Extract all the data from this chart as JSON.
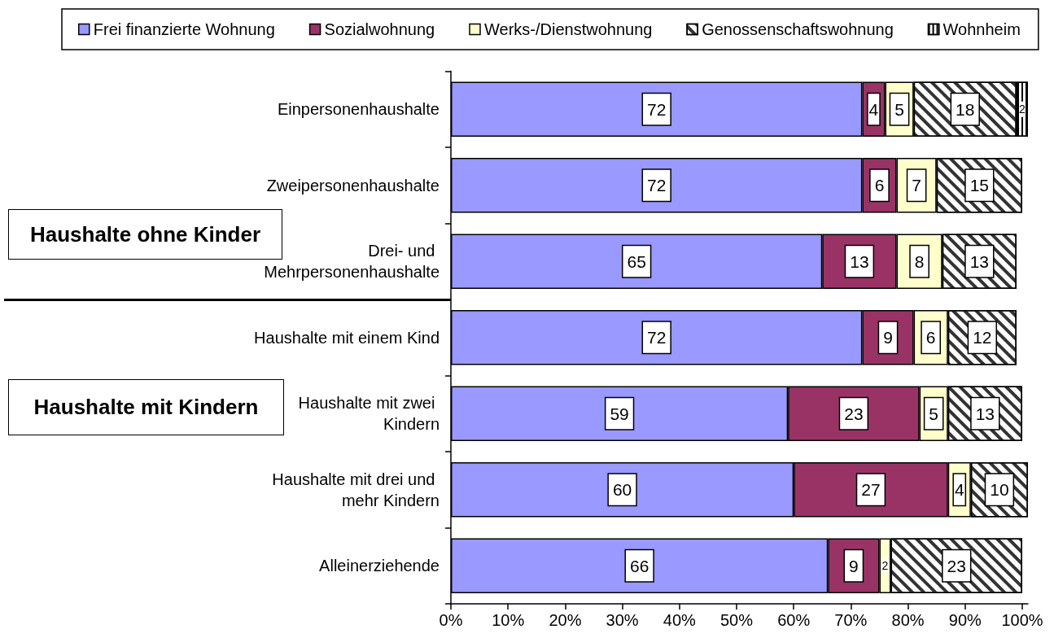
{
  "chart_data": {
    "type": "bar",
    "orientation": "horizontal",
    "stacked": true,
    "categories": [
      "Einpersonenhaushalte",
      "Zweipersonenhaushalte",
      "Drei- und Mehrpersonenhaushalte",
      "Haushalte mit einem Kind",
      "Haushalte mit zwei Kindern",
      "Haushalte mit drei und mehr Kindern",
      "Alleinerziehende"
    ],
    "series": [
      {
        "name": "Frei finanzierte Wohnung",
        "color": "#9999ff",
        "values": [
          72,
          72,
          65,
          72,
          59,
          60,
          66
        ]
      },
      {
        "name": "Sozialwohnung",
        "color": "#993366",
        "values": [
          4,
          6,
          13,
          9,
          23,
          27,
          9
        ]
      },
      {
        "name": "Werks-/Dienstwohnung",
        "color": "#ffffcc",
        "values": [
          5,
          7,
          8,
          6,
          5,
          4,
          2
        ]
      },
      {
        "name": "Genossenschaftswohnung",
        "color": "#ffffff",
        "values": [
          18,
          15,
          13,
          12,
          13,
          10,
          23
        ]
      },
      {
        "name": "Wohnheim",
        "color": "#ffffff",
        "values": [
          2,
          null,
          null,
          null,
          null,
          null,
          null
        ]
      }
    ],
    "data_labels": true,
    "xlim": [
      0,
      101
    ],
    "xticks": [
      {
        "value": 0,
        "label": "0%"
      },
      {
        "value": 10,
        "label": "10%"
      },
      {
        "value": 20,
        "label": "20%"
      },
      {
        "value": 30,
        "label": "30%"
      },
      {
        "value": 40,
        "label": "40%"
      },
      {
        "value": 50,
        "label": "50%"
      },
      {
        "value": 60,
        "label": "60%"
      },
      {
        "value": 70,
        "label": "70%"
      },
      {
        "value": 80,
        "label": "80%"
      },
      {
        "value": 90,
        "label": "90%"
      },
      {
        "value": 100,
        "label": "100%"
      }
    ],
    "grid": false,
    "legend": "top",
    "annotations": [
      "Haushalte ohne Kinder",
      "Haushalte mit Kindern"
    ]
  }
}
